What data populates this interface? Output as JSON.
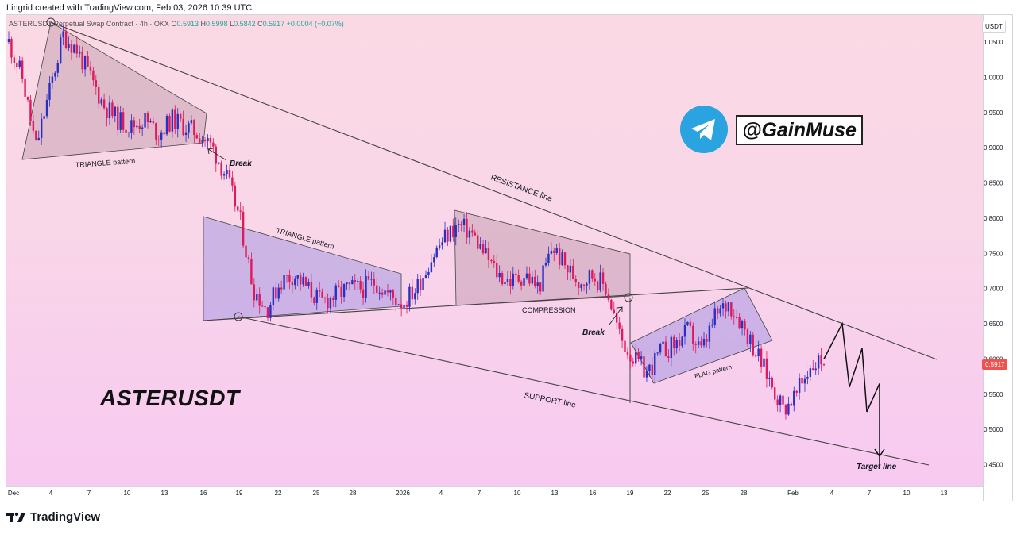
{
  "credit": "Lingrid created with TradingView.com, Feb 03, 2026 10:39 UTC",
  "symbol": {
    "name": "ASTERUSDT",
    "description": "Perpetual Swap Contract · 4h · OKX",
    "open_label": "O",
    "open": "0.5913",
    "high_label": "H",
    "high": "0.5998",
    "low_label": "L",
    "low": "0.5842",
    "close_label": "C",
    "close": "0.5917",
    "change": "+0.0004 (+0.07%)"
  },
  "currency": "USDT",
  "last_price": "0.5917",
  "handle": "@GainMuse",
  "ticker_label": "ASTERUSDT",
  "brand": "TradingView",
  "colors": {
    "up": "#2a2fc4",
    "down": "#e0195a",
    "line": "#444444",
    "price_tag": "#ef5350",
    "telegram": "#2aa3e1"
  },
  "icons": [
    "telegram-icon",
    "tradingview-logo-icon"
  ],
  "chart_data": {
    "type": "candlestick",
    "timeframe": "4h",
    "ylim": [
      0.41,
      1.09
    ],
    "y_ticks": [
      1.05,
      1.0,
      0.95,
      0.9,
      0.85,
      0.8,
      0.75,
      0.7,
      0.65,
      0.6,
      0.55,
      0.5,
      0.45
    ],
    "x_ticks": [
      "Dec",
      "4",
      "7",
      "10",
      "13",
      "16",
      "19",
      "22",
      "25",
      "28",
      "2026",
      "4",
      "7",
      "10",
      "13",
      "16",
      "19",
      "22",
      "25",
      "28",
      "Feb",
      "4",
      "7",
      "10",
      "13"
    ],
    "price_path": [
      [
        0,
        1.05
      ],
      [
        1,
        1.0
      ],
      [
        2,
        0.9
      ],
      [
        3,
        0.98
      ],
      [
        4,
        1.06
      ],
      [
        5,
        1.04
      ],
      [
        6,
        1.0
      ],
      [
        7,
        0.96
      ],
      [
        8,
        0.94
      ],
      [
        9,
        0.93
      ],
      [
        10,
        0.94
      ],
      [
        11,
        0.92
      ],
      [
        12,
        0.94
      ],
      [
        13,
        0.93
      ],
      [
        14,
        0.92
      ],
      [
        15,
        0.9
      ],
      [
        16,
        0.86
      ],
      [
        17,
        0.8
      ],
      [
        18,
        0.7
      ],
      [
        19,
        0.67
      ],
      [
        20,
        0.71
      ],
      [
        21,
        0.72
      ],
      [
        22,
        0.7
      ],
      [
        23,
        0.68
      ],
      [
        24,
        0.69
      ],
      [
        25,
        0.7
      ],
      [
        26,
        0.7
      ],
      [
        27,
        0.71
      ],
      [
        28,
        0.69
      ],
      [
        29,
        0.68
      ],
      [
        30,
        0.7
      ],
      [
        31,
        0.74
      ],
      [
        32,
        0.77
      ],
      [
        33,
        0.79
      ],
      [
        34,
        0.78
      ],
      [
        35,
        0.75
      ],
      [
        36,
        0.72
      ],
      [
        37,
        0.71
      ],
      [
        38,
        0.72
      ],
      [
        39,
        0.7
      ],
      [
        40,
        0.76
      ],
      [
        41,
        0.73
      ],
      [
        42,
        0.71
      ],
      [
        43,
        0.72
      ],
      [
        44,
        0.7
      ],
      [
        45,
        0.63
      ],
      [
        46,
        0.6
      ],
      [
        47,
        0.58
      ],
      [
        48,
        0.61
      ],
      [
        49,
        0.62
      ],
      [
        50,
        0.64
      ],
      [
        51,
        0.61
      ],
      [
        52,
        0.66
      ],
      [
        53,
        0.68
      ],
      [
        54,
        0.65
      ],
      [
        55,
        0.61
      ],
      [
        56,
        0.57
      ],
      [
        57,
        0.53
      ],
      [
        58,
        0.55
      ],
      [
        59,
        0.59
      ],
      [
        60,
        0.6
      ]
    ],
    "projection": [
      0.6,
      0.65,
      0.56,
      0.615,
      0.525,
      0.565,
      0.45
    ],
    "pattern_labels": [
      "TRIANGLE pattern",
      "Break",
      "TRIANGLE pattern",
      "RESISTANCE line",
      "COMPRESSION",
      "Break",
      "FLAG pattern",
      "SUPPORT line",
      "Target line"
    ]
  }
}
